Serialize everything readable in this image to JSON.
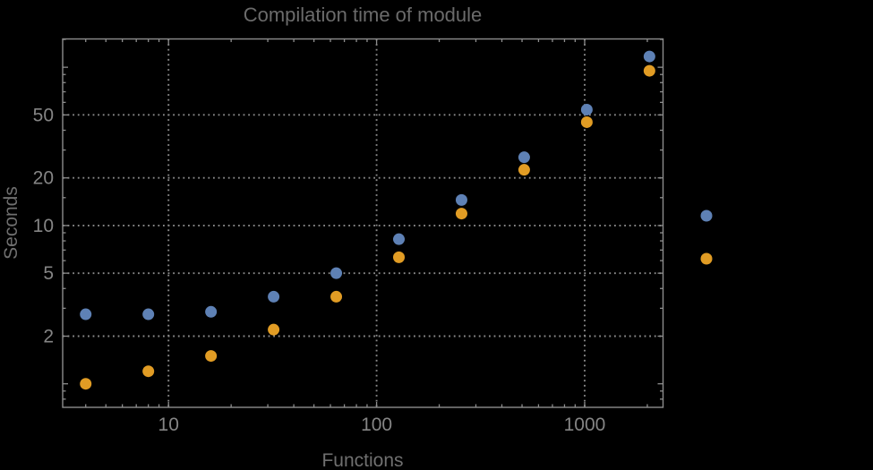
{
  "title": "Compilation time of module",
  "x_axis_label": "Functions",
  "y_axis_label": "Seconds",
  "colors": {
    "background": "#000000",
    "frame": "#8d8d8d",
    "grid": "#8a8a8a",
    "tick_label": "#858585",
    "axis_label": "#6f6f6f",
    "title": "#6b6b6b",
    "series_blue": "#5e81b5",
    "series_orange": "#e19c24"
  },
  "chart_data": {
    "type": "scatter",
    "title": "Compilation time of module",
    "xlabel": "Functions",
    "ylabel": "Seconds",
    "x_scale": "log",
    "y_scale": "log",
    "xlim": [
      3.1,
      2380
    ],
    "ylim": [
      0.71,
      151
    ],
    "grid": true,
    "legend_position": "right-outside",
    "x_tick_labels": [
      10,
      100,
      1000
    ],
    "y_tick_labels": [
      2,
      5,
      10,
      20,
      50
    ],
    "x_minor_ticks": [
      4,
      5,
      6,
      7,
      8,
      9,
      20,
      30,
      40,
      50,
      60,
      70,
      80,
      90,
      200,
      300,
      400,
      500,
      600,
      700,
      800,
      900,
      2000
    ],
    "y_major_unlabeled_ticks": [
      1,
      100
    ],
    "y_minor_ticks": [
      0.8,
      0.9,
      3,
      4,
      6,
      7,
      8,
      9,
      15,
      30,
      40,
      60,
      70,
      80,
      90,
      150
    ],
    "x": [
      4,
      8,
      16,
      32,
      64,
      128,
      256,
      512,
      1024,
      2048
    ],
    "series": [
      {
        "name": "blue",
        "color": "#5e81b5",
        "values": [
          2.75,
          2.75,
          2.85,
          3.55,
          5.0,
          8.2,
          14.5,
          27,
          54,
          117
        ]
      },
      {
        "name": "orange",
        "color": "#e19c24",
        "values": [
          1.0,
          1.2,
          1.5,
          2.2,
          3.55,
          6.3,
          11.9,
          22.5,
          45,
          95
        ]
      }
    ],
    "legend_markers": [
      {
        "series": "blue",
        "color": "#5e81b5"
      },
      {
        "series": "orange",
        "color": "#e19c24"
      }
    ]
  }
}
